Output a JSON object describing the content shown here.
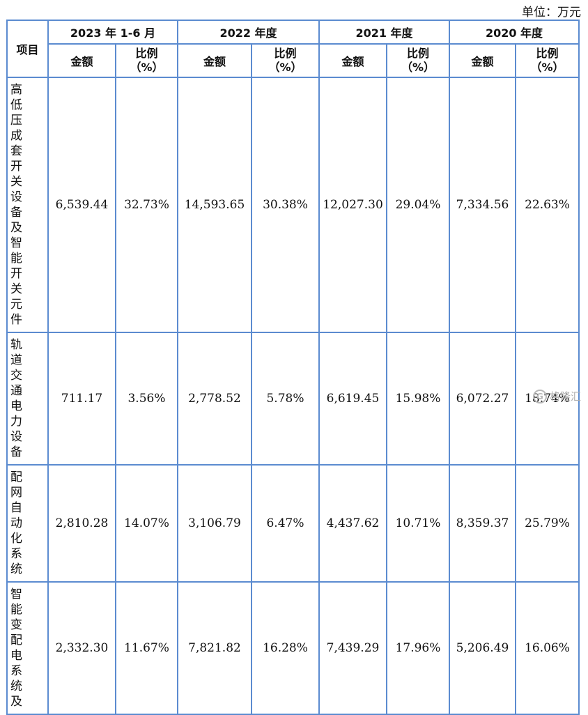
{
  "unit_label": "单位：万元",
  "header": {
    "item": "项目",
    "periods": [
      "2023 年 1-6 月",
      "2022 年度",
      "2021 年度",
      "2020 年度"
    ],
    "amount": "金额",
    "ratio_line1": "比例",
    "ratio_line2": "（%）"
  },
  "rows": [
    {
      "item": "高低压成套开关设备及智能开关元件",
      "values": [
        "6,539.44",
        "32.73%",
        "14,593.65",
        "30.38%",
        "12,027.30",
        "29.04%",
        "7,334.56",
        "22.63%"
      ]
    },
    {
      "item": "轨道交通电力设备",
      "values": [
        "711.17",
        "3.56%",
        "2,778.52",
        "5.78%",
        "6,619.45",
        "15.98%",
        "6,072.27",
        "18.74%"
      ]
    },
    {
      "item": "配网自动化系统",
      "values": [
        "2,810.28",
        "14.07%",
        "3,106.79",
        "6.47%",
        "4,437.62",
        "10.71%",
        "8,359.37",
        "25.79%"
      ]
    },
    {
      "item": "智能变配电系统及",
      "values": [
        "2,332.30",
        "11.67%",
        "7,821.82",
        "16.28%",
        "7,439.29",
        "17.96%",
        "5,206.49",
        "16.06%"
      ]
    }
  ],
  "watermark": "格隆汇",
  "watermark_icon": "G"
}
